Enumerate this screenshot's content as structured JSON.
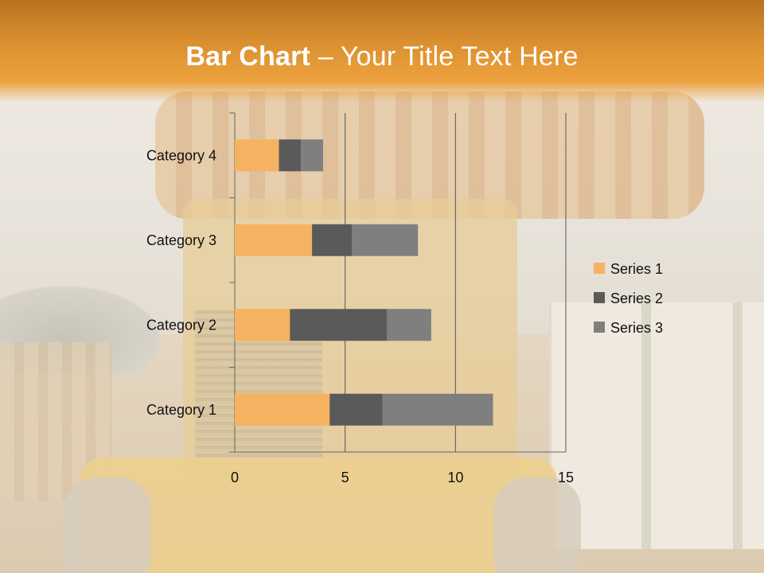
{
  "slide": {
    "title_bold": "Bar Chart",
    "title_sep": " – ",
    "title_rest": "Your Title Text Here"
  },
  "colors": {
    "header_top": "#b8731f",
    "header_bottom": "#eda23f",
    "gridline": "#555555"
  },
  "chart_data": {
    "type": "bar",
    "orientation": "horizontal",
    "stacked": true,
    "title": "",
    "xlabel": "",
    "ylabel": "",
    "categories": [
      "Category 1",
      "Category 2",
      "Category 3",
      "Category 4"
    ],
    "series": [
      {
        "name": "Series 1",
        "color": "#f5b260",
        "values": [
          4.3,
          2.5,
          3.5,
          2.0
        ]
      },
      {
        "name": "Series 2",
        "color": "#5a5a5a",
        "values": [
          2.4,
          4.4,
          1.8,
          1.0
        ]
      },
      {
        "name": "Series 3",
        "color": "#7f7f7f",
        "values": [
          5.0,
          2.0,
          3.0,
          1.0
        ]
      }
    ],
    "xlim": [
      0,
      15
    ],
    "xticks": [
      0,
      5,
      10,
      15
    ],
    "grid": true,
    "legend_position": "right"
  }
}
